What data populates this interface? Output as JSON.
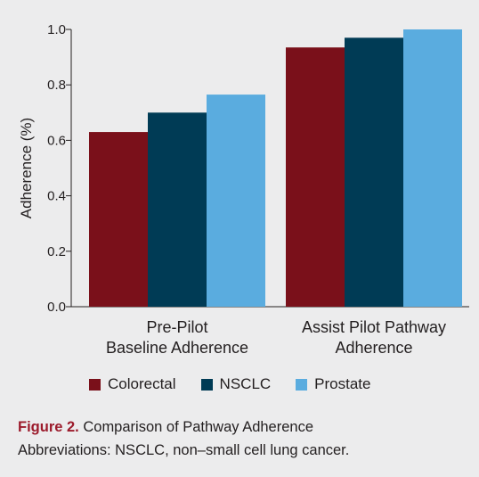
{
  "chart_data": {
    "type": "bar",
    "categories": [
      "Pre-Pilot\nBaseline Adherence",
      "Assist Pilot Pathway\nAdherence"
    ],
    "series": [
      {
        "name": "Colorectal",
        "color": "#7a101a",
        "values": [
          0.63,
          0.935
        ]
      },
      {
        "name": "NSCLC",
        "color": "#003b55",
        "values": [
          0.7,
          0.97
        ]
      },
      {
        "name": "Prostate",
        "color": "#5aacdf",
        "values": [
          0.765,
          1.0
        ]
      }
    ],
    "ylabel": "Adherence (%)",
    "xlabel": "",
    "ylim": [
      0,
      1.0
    ],
    "yticks": [
      "0.0",
      "0.2",
      "0.4",
      "0.6",
      "0.8",
      "1.0"
    ],
    "grid": false,
    "legend_position": "bottom"
  },
  "caption": {
    "figure_label": "Figure 2.",
    "title": " Comparison of Pathway Adherence",
    "abbreviations": "Abbreviations: NSCLC, non–small cell lung cancer."
  }
}
